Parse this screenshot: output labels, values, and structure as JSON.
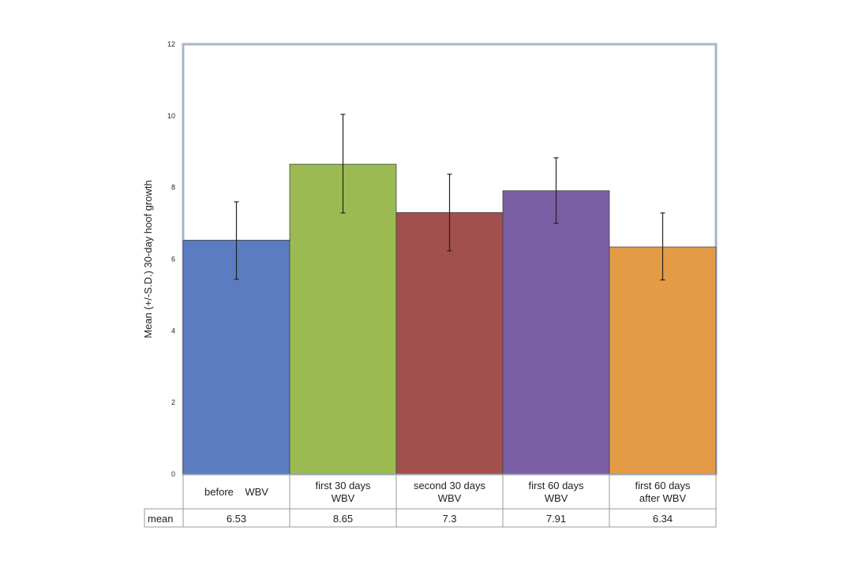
{
  "chart_data": {
    "type": "bar",
    "ylabel": "Mean (+/-S.D.) 30-day hoof growth",
    "ylim": [
      0,
      12
    ],
    "yticks": [
      0,
      2,
      4,
      6,
      8,
      10,
      12
    ],
    "grid": false,
    "categories": [
      [
        "before    WBV"
      ],
      [
        "first 30 days",
        "WBV"
      ],
      [
        "second 30 days",
        "WBV"
      ],
      [
        "first 60 days",
        "WBV"
      ],
      [
        "first 60 days",
        "after WBV"
      ]
    ],
    "values": [
      6.53,
      8.65,
      7.3,
      7.91,
      6.34
    ],
    "error_low": [
      5.44,
      7.29,
      6.23,
      7.0,
      5.42
    ],
    "error_high": [
      7.6,
      10.04,
      8.37,
      8.83,
      7.29
    ],
    "colors": [
      "#5b7cc0",
      "#9bbb52",
      "#a2504d",
      "#7a5ea3",
      "#e39b45"
    ],
    "table": {
      "row_label": "mean",
      "values": [
        "6.53",
        "8.65",
        "7.3",
        "7.91",
        "6.34"
      ]
    }
  }
}
